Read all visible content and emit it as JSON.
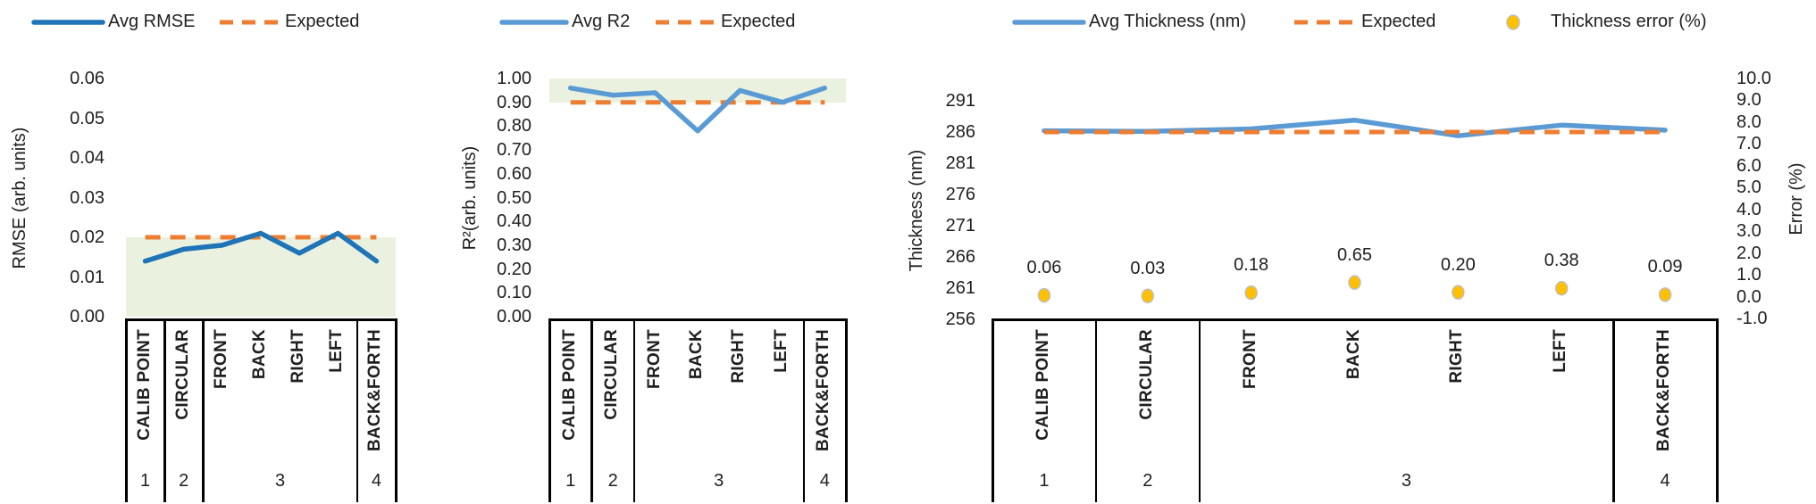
{
  "page": {
    "background": "#FFFFFF",
    "text_color": "#1F1F1F",
    "table_border_color": "#000000"
  },
  "chart_data": [
    {
      "type": "line",
      "title": "",
      "legend": [
        {
          "label": "Avg RMSE",
          "marker": "line",
          "color": "#1F74B8"
        },
        {
          "label": "Expected",
          "marker": "dash",
          "color": "#ED7D31"
        }
      ],
      "ylabel": "RMSE (arb. units)",
      "ylim": [
        0,
        0.06
      ],
      "yticks": [
        "0.00",
        "0.01",
        "0.02",
        "0.03",
        "0.04",
        "0.05",
        "0.06"
      ],
      "grid": false,
      "categories": [
        "CALIB POINT",
        "CIRCULAR",
        "FRONT",
        "BACK",
        "RIGHT",
        "LEFT",
        "BACK&FORTH"
      ],
      "groups": [
        {
          "label": "1",
          "from": 0,
          "to": 0
        },
        {
          "label": "2",
          "from": 1,
          "to": 1
        },
        {
          "label": "3",
          "from": 2,
          "to": 5
        },
        {
          "label": "4",
          "from": 6,
          "to": 6
        }
      ],
      "series": [
        {
          "name": "Avg RMSE",
          "color": "#1F74B8",
          "values": [
            0.014,
            0.017,
            0.018,
            0.021,
            0.016,
            0.021,
            0.014
          ]
        }
      ],
      "expected": {
        "name": "Expected",
        "color": "#ED7D31",
        "value": 0.02
      },
      "band": {
        "range": [
          0,
          0.02
        ],
        "color": "#EAF1DF"
      }
    },
    {
      "type": "line",
      "title": "",
      "legend": [
        {
          "label": "Avg R2",
          "marker": "line",
          "color": "#5B9BD5"
        },
        {
          "label": "Expected",
          "marker": "dash",
          "color": "#ED7D31"
        }
      ],
      "ylabel": "R²(arb. units)",
      "ylim": [
        0,
        1.0
      ],
      "yticks": [
        "0.00",
        "0.10",
        "0.20",
        "0.30",
        "0.40",
        "0.50",
        "0.60",
        "0.70",
        "0.80",
        "0.90",
        "1.00"
      ],
      "grid": false,
      "categories": [
        "CALIB POINT",
        "CIRCULAR",
        "FRONT",
        "BACK",
        "RIGHT",
        "LEFT",
        "BACK&FORTH"
      ],
      "groups": [
        {
          "label": "1",
          "from": 0,
          "to": 0
        },
        {
          "label": "2",
          "from": 1,
          "to": 1
        },
        {
          "label": "3",
          "from": 2,
          "to": 5
        },
        {
          "label": "4",
          "from": 6,
          "to": 6
        }
      ],
      "series": [
        {
          "name": "Avg R2",
          "color": "#5B9BD5",
          "values": [
            0.96,
            0.93,
            0.94,
            0.78,
            0.95,
            0.9,
            0.96
          ]
        }
      ],
      "expected": {
        "name": "Expected",
        "color": "#ED7D31",
        "value": 0.9
      },
      "band": {
        "range": [
          0.9,
          1.0
        ],
        "color": "#EAF1DF"
      }
    },
    {
      "type": "line",
      "title": "",
      "legend": [
        {
          "label": "Avg Thickness (nm)",
          "marker": "line",
          "color": "#5B9BD5"
        },
        {
          "label": "Expected",
          "marker": "dash",
          "color": "#ED7D31"
        },
        {
          "label": "Thickness error (%)",
          "marker": "dot",
          "color": "#FFC000"
        }
      ],
      "ylabel": "Thickness (nm)",
      "ylim": [
        256,
        291
      ],
      "yticks": [
        "256",
        "261",
        "266",
        "271",
        "276",
        "281",
        "286",
        "291"
      ],
      "ylabel_right": "Error (%)",
      "ylim_right": [
        -1.0,
        10.0
      ],
      "yticks_right": [
        "-1.0",
        "0.0",
        "1.0",
        "2.0",
        "3.0",
        "4.0",
        "5.0",
        "6.0",
        "7.0",
        "8.0",
        "9.0",
        "10.0"
      ],
      "grid": false,
      "categories": [
        "CALIB POINT",
        "CIRCULAR",
        "FRONT",
        "BACK",
        "RIGHT",
        "LEFT",
        "BACK&FORTH"
      ],
      "groups": [
        {
          "label": "1",
          "from": 0,
          "to": 0
        },
        {
          "label": "2",
          "from": 1,
          "to": 1
        },
        {
          "label": "3",
          "from": 2,
          "to": 5
        },
        {
          "label": "4",
          "from": 6,
          "to": 6
        }
      ],
      "series": [
        {
          "name": "Avg Thickness (nm)",
          "color": "#5B9BD5",
          "values": [
            286.2,
            286.1,
            286.5,
            287.9,
            285.4,
            287.1,
            286.3
          ]
        }
      ],
      "expected": {
        "name": "Expected",
        "color": "#ED7D31",
        "value": 286
      },
      "points": {
        "name": "Thickness error (%)",
        "axis": "right",
        "color": "#FFC000",
        "stroke": "#BFBFBF",
        "values": [
          0.06,
          0.03,
          0.18,
          0.65,
          0.2,
          0.38,
          0.09
        ],
        "labels": [
          "0.06",
          "0.03",
          "0.18",
          "0.65",
          "0.20",
          "0.38",
          "0.09"
        ]
      }
    }
  ]
}
